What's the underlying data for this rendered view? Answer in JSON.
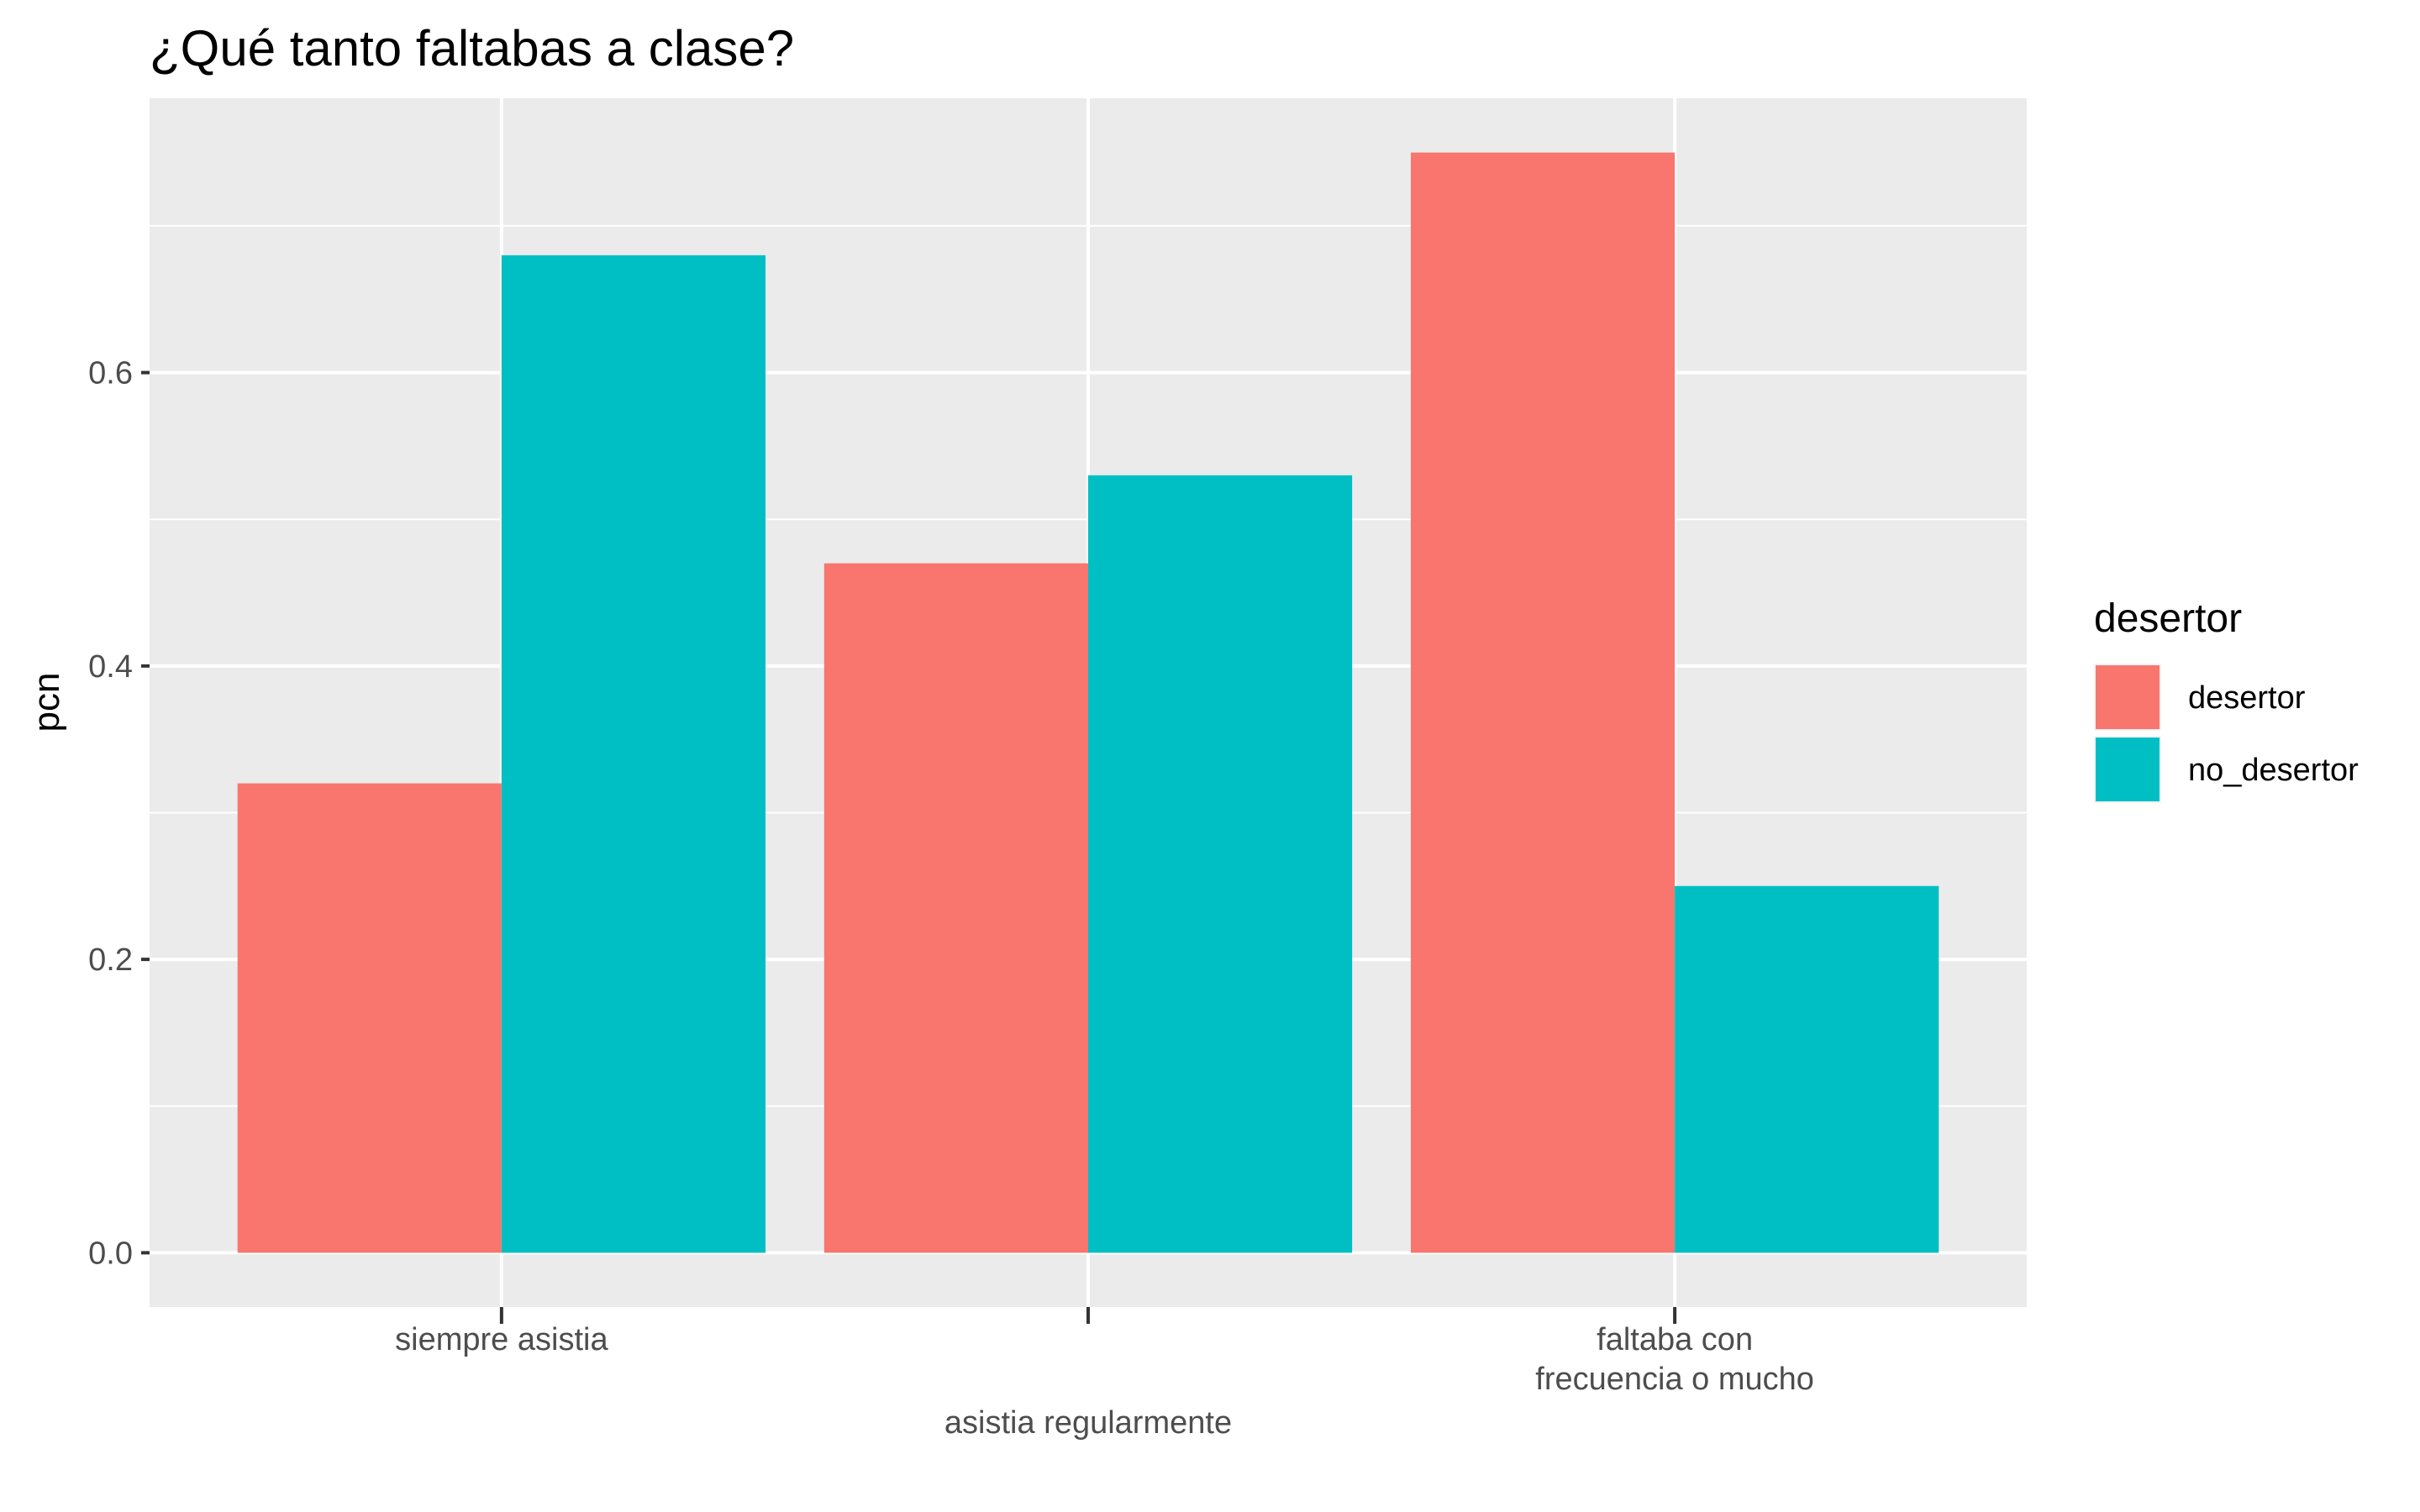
{
  "chart_data": {
    "type": "bar",
    "title": "¿Qué tanto faltabas a clase?",
    "xlabel": "",
    "ylabel": "pcn",
    "categories": [
      [
        "siempre asistia"
      ],
      [
        "asistia regularmente"
      ],
      [
        "faltaba con",
        "frecuencia o mucho"
      ]
    ],
    "series": [
      {
        "name": "desertor",
        "color": "#F8766D",
        "values": [
          0.32,
          0.47,
          0.75
        ]
      },
      {
        "name": "no_desertor",
        "color": "#00BFC4",
        "values": [
          0.68,
          0.53,
          0.25
        ]
      }
    ],
    "yticks": [
      "0.0",
      "0.2",
      "0.4",
      "0.6"
    ],
    "ylim": [
      -0.037,
      0.787
    ],
    "grid": true,
    "legend": {
      "title": "desertor",
      "position": "right"
    },
    "panel_color": "#EBEBEB",
    "grid_color": "#FFFFFF"
  }
}
